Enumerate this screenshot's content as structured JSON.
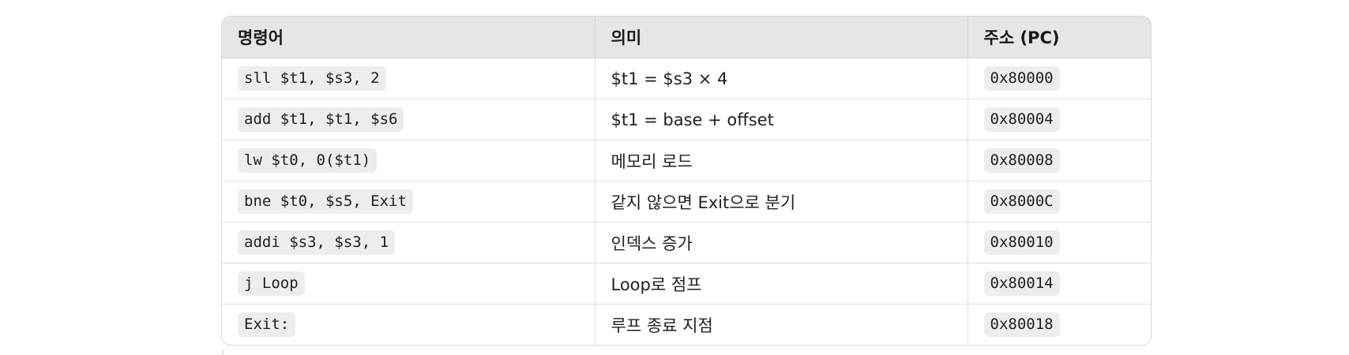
{
  "table": {
    "headers": [
      "명령어",
      "의미",
      "주소 (PC)"
    ],
    "rows": [
      {
        "instruction": "sll $t1, $s3, 2",
        "meaning": "$t1 = $s3 × 4",
        "address": "0x80000"
      },
      {
        "instruction": "add $t1, $t1, $s6",
        "meaning": "$t1 = base + offset",
        "address": "0x80004"
      },
      {
        "instruction": "lw $t0, 0($t1)",
        "meaning": "메모리 로드",
        "address": "0x80008"
      },
      {
        "instruction": "bne $t0, $s5, Exit",
        "meaning": "같지 않으면 Exit으로 분기",
        "address": "0x8000C"
      },
      {
        "instruction": "addi $s3, $s3, 1",
        "meaning": "인덱스 증가",
        "address": "0x80010"
      },
      {
        "instruction": "j Loop",
        "meaning": "Loop로 점프",
        "address": "0x80014"
      },
      {
        "instruction": "Exit:",
        "meaning": "루프 종료 지점",
        "address": "0x80018"
      }
    ]
  }
}
